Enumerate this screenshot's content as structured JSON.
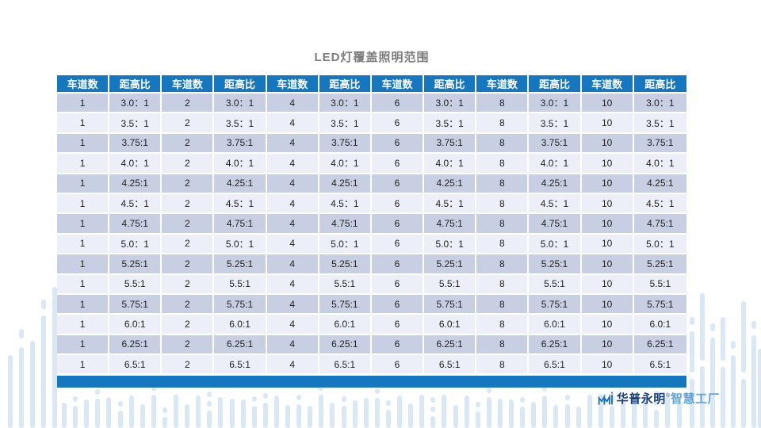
{
  "page": {
    "title": "LED灯覆盖照明范围"
  },
  "table": {
    "lane_header": "车道数",
    "ratio_header": "距高比",
    "lanes": [
      "1",
      "2",
      "4",
      "6",
      "8",
      "10"
    ],
    "ratios": [
      "3.0：1",
      "3.5：1",
      "3.75:1",
      "4.0：1",
      "4.25:1",
      "4.5：1",
      "4.75:1",
      "5.0：1",
      "5.25:1",
      "5.5:1",
      "5.75:1",
      "6.0:1",
      "6.25:1",
      "6.5:1"
    ]
  },
  "footer_logo": {
    "brand": "华普永明",
    "trademark": "®",
    "suffix": "智慧工厂"
  },
  "colors": {
    "accent_blue": "#1577c0",
    "row_dark": "#c9cfe3",
    "row_light": "#eceff7",
    "title_gray": "#7c7c7c",
    "logo_dark": "#17417e",
    "logo_light": "#4f9fd8",
    "decor_bar": "#d9e8f4",
    "cell_text": "#1f1f1f"
  }
}
